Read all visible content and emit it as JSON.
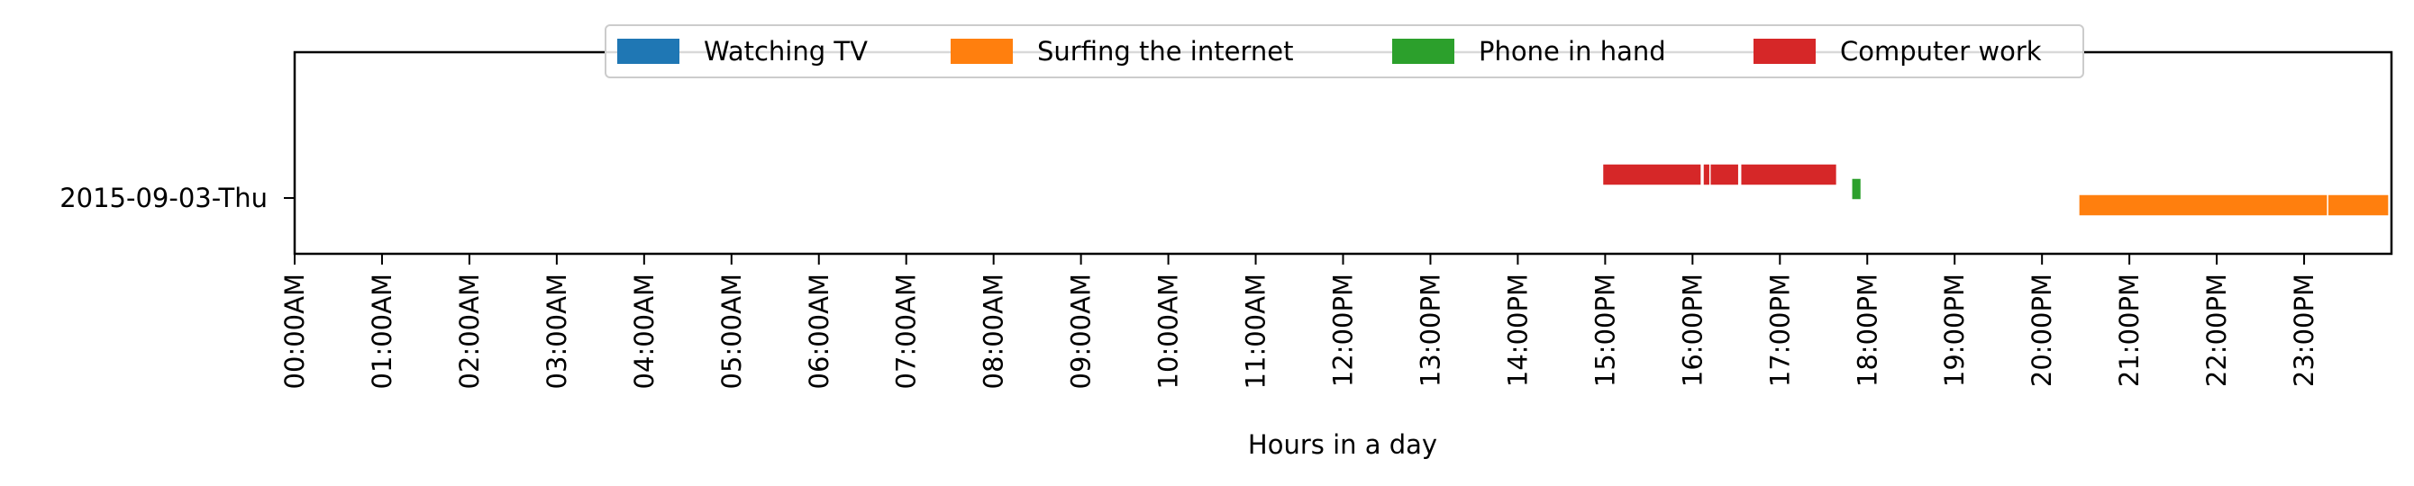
{
  "chart_data": {
    "type": "timeline",
    "xlabel": "Hours in a day",
    "x_unit": "hour of day",
    "xlim": [
      0,
      24
    ],
    "x_ticks": [
      {
        "value": 0,
        "label": "00:00AM"
      },
      {
        "value": 1,
        "label": "01:00AM"
      },
      {
        "value": 2,
        "label": "02:00AM"
      },
      {
        "value": 3,
        "label": "03:00AM"
      },
      {
        "value": 4,
        "label": "04:00AM"
      },
      {
        "value": 5,
        "label": "05:00AM"
      },
      {
        "value": 6,
        "label": "06:00AM"
      },
      {
        "value": 7,
        "label": "07:00AM"
      },
      {
        "value": 8,
        "label": "08:00AM"
      },
      {
        "value": 9,
        "label": "09:00AM"
      },
      {
        "value": 10,
        "label": "10:00AM"
      },
      {
        "value": 11,
        "label": "11:00AM"
      },
      {
        "value": 12,
        "label": "12:00PM"
      },
      {
        "value": 13,
        "label": "13:00PM"
      },
      {
        "value": 14,
        "label": "14:00PM"
      },
      {
        "value": 15,
        "label": "15:00PM"
      },
      {
        "value": 16,
        "label": "16:00PM"
      },
      {
        "value": 17,
        "label": "17:00PM"
      },
      {
        "value": 18,
        "label": "18:00PM"
      },
      {
        "value": 19,
        "label": "19:00PM"
      },
      {
        "value": 20,
        "label": "20:00PM"
      },
      {
        "value": 21,
        "label": "21:00PM"
      },
      {
        "value": 22,
        "label": "22:00PM"
      },
      {
        "value": 23,
        "label": "23:00PM"
      }
    ],
    "y_categories": [
      "2015-09-03-Thu"
    ],
    "legend_position": "top-center",
    "series": [
      {
        "name": "Watching TV",
        "color": "#1f77b4",
        "intervals": []
      },
      {
        "name": "Surfing the internet",
        "color": "#ff7f0e",
        "intervals": [
          [
            20.42,
            23.27
          ],
          [
            23.27,
            23.97
          ]
        ]
      },
      {
        "name": "Phone in hand",
        "color": "#2ca02c",
        "intervals": [
          [
            17.82,
            17.93
          ]
        ]
      },
      {
        "name": "Computer work",
        "color": "#d62728",
        "intervals": [
          [
            14.97,
            16.1
          ],
          [
            16.12,
            16.17
          ],
          [
            16.2,
            16.53
          ],
          [
            16.55,
            17.65
          ]
        ]
      }
    ]
  }
}
